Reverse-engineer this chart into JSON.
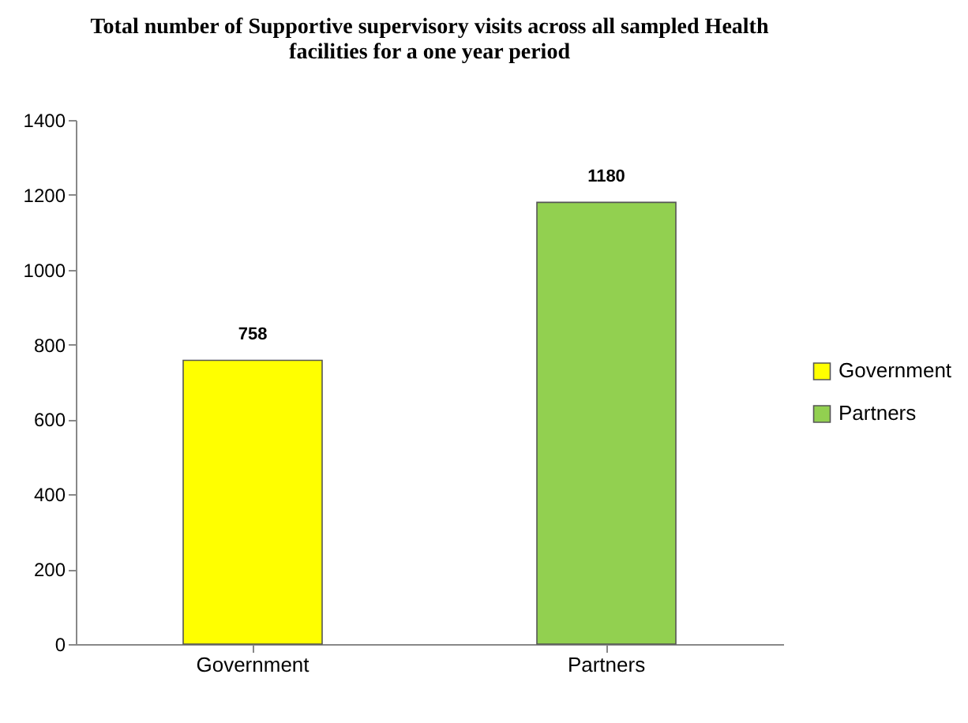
{
  "chart_data": {
    "type": "bar",
    "title": [
      "Total number of Supportive supervisory visits across all sampled Health",
      "facilities for a one year period"
    ],
    "categories": [
      "Government",
      "Partners"
    ],
    "series": [
      {
        "name": "Government",
        "color": "#ffff00",
        "values": [
          758,
          null
        ]
      },
      {
        "name": "Partners",
        "color": "#92d050",
        "values": [
          null,
          1180
        ]
      }
    ],
    "ylim": [
      0,
      1400
    ],
    "yticks": [
      0,
      200,
      400,
      600,
      800,
      1000,
      1200,
      1400
    ],
    "grid": false,
    "legend": "right",
    "data_labels": true
  }
}
